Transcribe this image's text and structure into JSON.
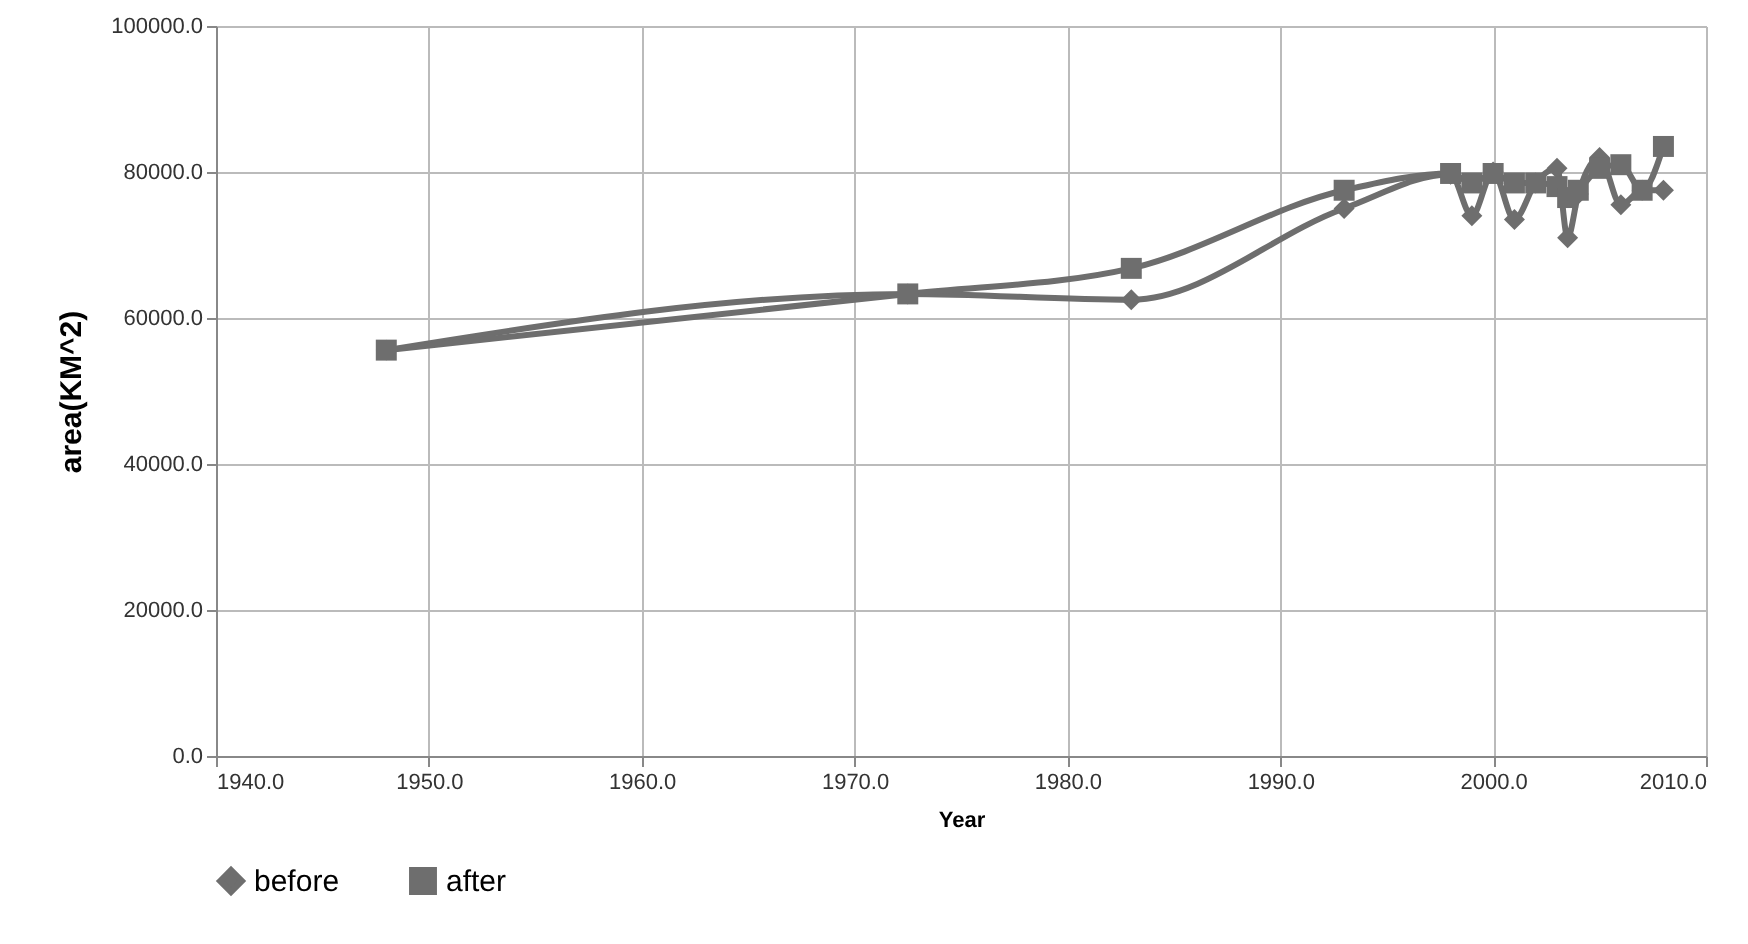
{
  "chart_data": {
    "type": "line",
    "xlabel": "Year",
    "ylabel": "area(KM^2)",
    "x": [
      1948,
      1972.5,
      1983,
      1993,
      1998,
      1999,
      2000,
      2001,
      2002,
      2003,
      2003.5,
      2004,
      2005,
      2006,
      2007,
      2008
    ],
    "series": [
      {
        "name": "before",
        "color": "#6e6e6e",
        "marker": "diamond",
        "values": [
          55600,
          63300,
          62500,
          75000,
          79700,
          74000,
          80000,
          73500,
          78500,
          80500,
          71000,
          77000,
          82000,
          75500,
          77500,
          77500
        ]
      },
      {
        "name": "after",
        "color": "#6e6e6e",
        "marker": "square",
        "values": [
          55600,
          63300,
          66800,
          77500,
          79800,
          78500,
          79800,
          78500,
          78500,
          78000,
          76500,
          77500,
          80500,
          81000,
          77500,
          83500
        ]
      }
    ],
    "xlim": [
      1940,
      2010
    ],
    "xticks": [
      {
        "value": 1940,
        "label": "1940.0"
      },
      {
        "value": 1950,
        "label": "1950.0"
      },
      {
        "value": 1960,
        "label": "1960.0"
      },
      {
        "value": 1970,
        "label": "1970.0"
      },
      {
        "value": 1980,
        "label": "1980.0"
      },
      {
        "value": 1990,
        "label": "1990.0"
      },
      {
        "value": 2000,
        "label": "2000.0"
      },
      {
        "value": 2010,
        "label": "2010.0"
      }
    ],
    "ylim": [
      0,
      100000
    ],
    "yticks": [
      {
        "value": 0,
        "label": "0.0"
      },
      {
        "value": 20000,
        "label": "20000.0"
      },
      {
        "value": 40000,
        "label": "40000.0"
      },
      {
        "value": 60000,
        "label": "60000.0"
      },
      {
        "value": 80000,
        "label": "80000.0"
      },
      {
        "value": 100000,
        "label": "100000.0"
      }
    ],
    "grid": true,
    "legend": "bottom",
    "line_style": "solid"
  }
}
